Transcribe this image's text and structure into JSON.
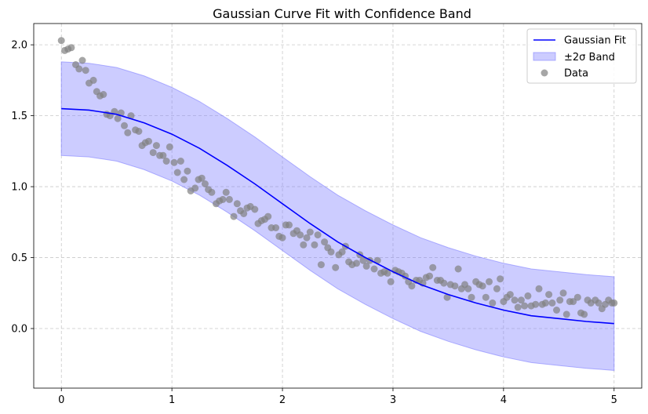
{
  "chart_data": {
    "type": "line",
    "title": "Gaussian Curve Fit with Confidence Band",
    "xlabel": "",
    "ylabel": "",
    "xlim": [
      -0.25,
      5.25
    ],
    "ylim": [
      -0.42,
      2.15
    ],
    "x_ticks": [
      0,
      1,
      2,
      3,
      4,
      5
    ],
    "x_tick_labels": [
      "0",
      "1",
      "2",
      "3",
      "4",
      "5"
    ],
    "y_ticks": [
      0.0,
      0.5,
      1.0,
      1.5,
      2.0
    ],
    "y_tick_labels": [
      "0.0",
      "0.5",
      "1.0",
      "1.5",
      "2.0"
    ],
    "grid": true,
    "legend_position": "top-right",
    "colors": {
      "fit": "#0000ff",
      "band": "#8080ff",
      "data": "#808080"
    },
    "series": [
      {
        "name": "Gaussian Fit",
        "kind": "line",
        "x": [
          0,
          0.25,
          0.5,
          0.75,
          1.0,
          1.25,
          1.5,
          1.75,
          2.0,
          2.25,
          2.5,
          2.75,
          3.0,
          3.25,
          3.5,
          3.75,
          4.0,
          4.25,
          4.5,
          4.75,
          5.0
        ],
        "y": [
          1.55,
          1.54,
          1.51,
          1.45,
          1.37,
          1.27,
          1.15,
          1.02,
          0.88,
          0.74,
          0.61,
          0.5,
          0.4,
          0.31,
          0.24,
          0.18,
          0.13,
          0.09,
          0.07,
          0.05,
          0.035
        ]
      },
      {
        "name": "±2σ Band",
        "kind": "band",
        "x": [
          0,
          0.25,
          0.5,
          0.75,
          1.0,
          1.25,
          1.5,
          1.75,
          2.0,
          2.25,
          2.5,
          2.75,
          3.0,
          3.25,
          3.5,
          3.75,
          4.0,
          4.25,
          4.5,
          4.75,
          5.0
        ],
        "upper": [
          1.88,
          1.87,
          1.84,
          1.78,
          1.7,
          1.6,
          1.48,
          1.35,
          1.21,
          1.07,
          0.94,
          0.83,
          0.73,
          0.64,
          0.57,
          0.51,
          0.46,
          0.42,
          0.4,
          0.38,
          0.365
        ],
        "lower": [
          1.22,
          1.21,
          1.18,
          1.12,
          1.04,
          0.94,
          0.82,
          0.69,
          0.55,
          0.41,
          0.28,
          0.17,
          0.07,
          -0.02,
          -0.09,
          -0.15,
          -0.2,
          -0.24,
          -0.26,
          -0.28,
          -0.295
        ]
      },
      {
        "name": "Data",
        "kind": "scatter",
        "x": [
          0.0,
          0.03,
          0.06,
          0.09,
          0.13,
          0.16,
          0.19,
          0.22,
          0.25,
          0.29,
          0.32,
          0.35,
          0.38,
          0.41,
          0.44,
          0.48,
          0.51,
          0.54,
          0.57,
          0.6,
          0.63,
          0.67,
          0.7,
          0.73,
          0.76,
          0.79,
          0.83,
          0.86,
          0.89,
          0.92,
          0.95,
          0.98,
          1.02,
          1.05,
          1.08,
          1.11,
          1.14,
          1.17,
          1.21,
          1.24,
          1.27,
          1.3,
          1.33,
          1.36,
          1.4,
          1.43,
          1.46,
          1.49,
          1.52,
          1.56,
          1.59,
          1.62,
          1.65,
          1.68,
          1.71,
          1.75,
          1.78,
          1.81,
          1.84,
          1.87,
          1.9,
          1.94,
          1.97,
          2.0,
          2.03,
          2.06,
          2.1,
          2.13,
          2.16,
          2.19,
          2.22,
          2.25,
          2.29,
          2.32,
          2.35,
          2.38,
          2.41,
          2.44,
          2.48,
          2.51,
          2.54,
          2.57,
          2.6,
          2.63,
          2.67,
          2.7,
          2.73,
          2.76,
          2.79,
          2.83,
          2.86,
          2.89,
          2.92,
          2.95,
          2.98,
          3.02,
          3.05,
          3.08,
          3.11,
          3.14,
          3.17,
          3.21,
          3.24,
          3.27,
          3.3,
          3.33,
          3.36,
          3.4,
          3.43,
          3.46,
          3.49,
          3.52,
          3.56,
          3.59,
          3.62,
          3.65,
          3.68,
          3.71,
          3.75,
          3.78,
          3.81,
          3.84,
          3.87,
          3.9,
          3.94,
          3.97,
          4.0,
          4.03,
          4.06,
          4.1,
          4.13,
          4.16,
          4.19,
          4.22,
          4.25,
          4.29,
          4.32,
          4.35,
          4.38,
          4.41,
          4.44,
          4.48,
          4.51,
          4.54,
          4.57,
          4.6,
          4.63,
          4.67,
          4.7,
          4.73,
          4.76,
          4.79,
          4.83,
          4.86,
          4.89,
          4.92,
          4.95,
          4.98,
          5.0
        ],
        "y": [
          2.03,
          1.96,
          1.97,
          1.98,
          1.86,
          1.83,
          1.89,
          1.82,
          1.73,
          1.75,
          1.67,
          1.64,
          1.65,
          1.51,
          1.5,
          1.53,
          1.48,
          1.52,
          1.43,
          1.38,
          1.5,
          1.4,
          1.39,
          1.29,
          1.31,
          1.32,
          1.24,
          1.29,
          1.22,
          1.22,
          1.18,
          1.28,
          1.17,
          1.1,
          1.18,
          1.05,
          1.11,
          0.97,
          0.99,
          1.05,
          1.06,
          1.02,
          0.98,
          0.96,
          0.88,
          0.9,
          0.91,
          0.96,
          0.91,
          0.79,
          0.88,
          0.83,
          0.81,
          0.85,
          0.86,
          0.84,
          0.74,
          0.76,
          0.77,
          0.79,
          0.71,
          0.71,
          0.65,
          0.64,
          0.73,
          0.73,
          0.67,
          0.69,
          0.66,
          0.59,
          0.64,
          0.68,
          0.59,
          0.66,
          0.45,
          0.61,
          0.57,
          0.54,
          0.43,
          0.52,
          0.54,
          0.58,
          0.47,
          0.45,
          0.46,
          0.52,
          0.48,
          0.44,
          0.48,
          0.42,
          0.48,
          0.39,
          0.4,
          0.39,
          0.33,
          0.41,
          0.4,
          0.39,
          0.37,
          0.33,
          0.3,
          0.34,
          0.34,
          0.32,
          0.36,
          0.37,
          0.43,
          0.34,
          0.34,
          0.32,
          0.22,
          0.31,
          0.3,
          0.42,
          0.28,
          0.31,
          0.28,
          0.22,
          0.33,
          0.31,
          0.3,
          0.22,
          0.33,
          0.18,
          0.28,
          0.35,
          0.19,
          0.22,
          0.24,
          0.2,
          0.15,
          0.2,
          0.16,
          0.23,
          0.16,
          0.17,
          0.28,
          0.17,
          0.18,
          0.24,
          0.18,
          0.13,
          0.2,
          0.25,
          0.1,
          0.19,
          0.19,
          0.22,
          0.11,
          0.1,
          0.2,
          0.18,
          0.2,
          0.18,
          0.14,
          0.17,
          0.2,
          0.18,
          0.18
        ]
      }
    ]
  }
}
